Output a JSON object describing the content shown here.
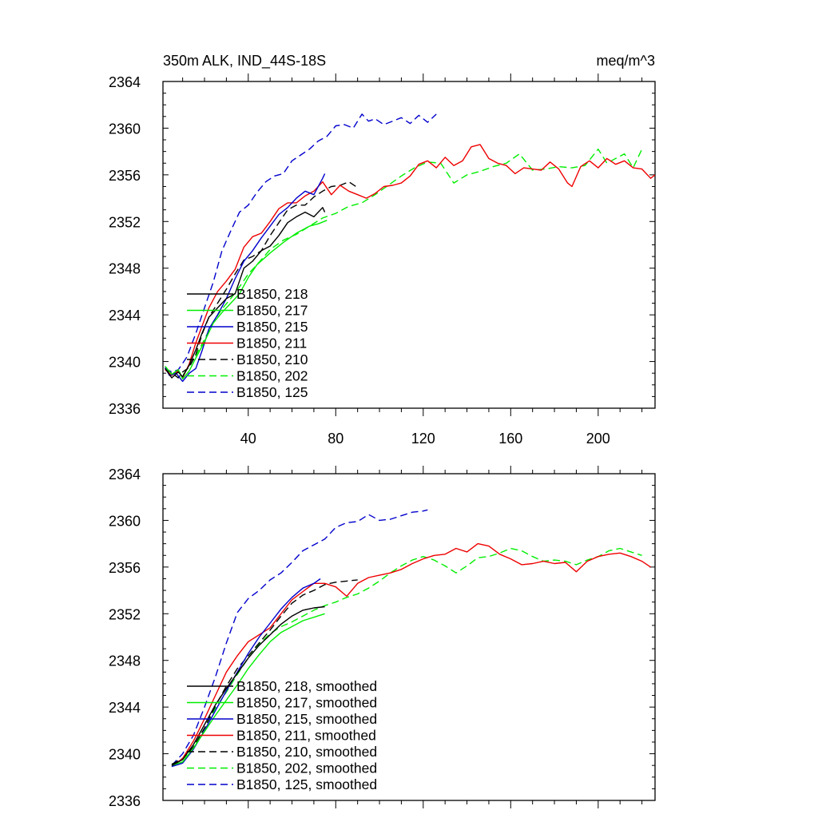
{
  "figure": {
    "title_left": "350m ALK, IND_44S-18S",
    "title_right": "meq/m^3"
  },
  "chart_data": [
    {
      "type": "line",
      "title": "350m ALK, IND_44S-18S",
      "units": "meq/m^3",
      "xlim": [
        1,
        226
      ],
      "ylim": [
        2336,
        2364
      ],
      "x_ticks": [
        40,
        80,
        120,
        160,
        200
      ],
      "x_tick_labels": [
        "40",
        "80",
        "120",
        "160",
        "200"
      ],
      "y_ticks": [
        2336,
        2340,
        2344,
        2348,
        2352,
        2356,
        2360,
        2364
      ],
      "y_tick_labels": [
        "2336",
        "2340",
        "2344",
        "2348",
        "2352",
        "2356",
        "2360",
        "2364"
      ],
      "legend_position": "lower-left",
      "series": [
        {
          "name": "B1850, 218",
          "color": "#000000",
          "dash": "solid",
          "x": [
            2,
            5,
            8,
            10,
            13,
            16,
            19,
            22,
            26,
            30,
            34,
            38,
            42,
            46,
            50,
            54,
            58,
            62,
            66,
            70,
            74,
            75
          ],
          "y": [
            2339.4,
            2338.6,
            2339.1,
            2338.7,
            2339.7,
            2341.0,
            2342.5,
            2343.8,
            2344.6,
            2345.4,
            2345.8,
            2348.0,
            2348.6,
            2349.5,
            2349.9,
            2350.8,
            2351.9,
            2352.4,
            2352.8,
            2352.4,
            2353.2,
            2352.8
          ]
        },
        {
          "name": "B1850, 217",
          "color": "#00ee00",
          "dash": "solid",
          "x": [
            2,
            5,
            8,
            10,
            13,
            16,
            20,
            24,
            28,
            32,
            36,
            40,
            44,
            50,
            56,
            62,
            68,
            72,
            76
          ],
          "y": [
            2339.6,
            2338.9,
            2339.3,
            2338.5,
            2339.2,
            2340.3,
            2341.7,
            2343.3,
            2344.2,
            2345.0,
            2345.8,
            2347.2,
            2348.3,
            2349.3,
            2350.2,
            2351.0,
            2351.6,
            2351.8,
            2352.1
          ]
        },
        {
          "name": "B1850, 215",
          "color": "#0000cc",
          "dash": "solid",
          "x": [
            2,
            4,
            7,
            10,
            13,
            16,
            19,
            22,
            26,
            30,
            34,
            38,
            42,
            46,
            50,
            54,
            58,
            62,
            66,
            70,
            74,
            75
          ],
          "y": [
            2339.5,
            2338.8,
            2339.0,
            2338.3,
            2339.0,
            2339.4,
            2341.0,
            2342.8,
            2344.0,
            2345.4,
            2347.1,
            2348.6,
            2349.5,
            2350.6,
            2351.6,
            2352.6,
            2353.2,
            2354.0,
            2354.6,
            2354.3,
            2355.7,
            2356.1
          ]
        },
        {
          "name": "B1850, 211",
          "color": "#ee0000",
          "dash": "solid",
          "x": [
            2,
            5,
            8,
            10,
            13,
            16,
            19,
            22,
            26,
            30,
            34,
            38,
            42,
            46,
            50,
            54,
            58,
            62,
            66,
            70,
            74,
            78,
            82,
            86,
            90,
            94,
            98,
            102,
            106,
            110,
            114,
            118,
            122,
            126,
            130,
            134,
            138,
            142,
            146,
            150,
            154,
            158,
            162,
            166,
            170,
            174,
            178,
            182,
            186,
            188,
            192,
            196,
            200,
            204,
            208,
            212,
            216,
            220,
            224,
            226
          ],
          "y": [
            2339.3,
            2338.8,
            2339.2,
            2338.6,
            2339.8,
            2341.6,
            2343.1,
            2344.6,
            2346.0,
            2346.9,
            2347.9,
            2349.8,
            2350.7,
            2351.0,
            2352.0,
            2353.1,
            2353.6,
            2353.6,
            2354.2,
            2354.6,
            2355.4,
            2354.3,
            2355.1,
            2354.6,
            2354.3,
            2354.0,
            2354.4,
            2355.0,
            2355.1,
            2355.3,
            2355.9,
            2356.9,
            2357.2,
            2356.6,
            2357.5,
            2356.8,
            2357.2,
            2358.4,
            2358.6,
            2357.4,
            2357.0,
            2356.8,
            2356.1,
            2356.6,
            2356.5,
            2356.4,
            2357.1,
            2356.5,
            2355.3,
            2355.0,
            2356.7,
            2357.2,
            2356.6,
            2357.4,
            2356.9,
            2357.2,
            2356.6,
            2356.5,
            2355.7,
            2356.0
          ]
        },
        {
          "name": "B1850, 210",
          "color": "#000000",
          "dash": "dashed",
          "x": [
            2,
            5,
            8,
            10,
            13,
            16,
            19,
            22,
            26,
            30,
            34,
            38,
            42,
            46,
            50,
            54,
            58,
            62,
            66,
            70,
            74,
            78,
            82,
            86,
            90
          ],
          "y": [
            2339.3,
            2339.0,
            2338.6,
            2339.1,
            2339.5,
            2340.6,
            2342.4,
            2343.8,
            2345.0,
            2346.2,
            2347.5,
            2348.7,
            2349.0,
            2349.5,
            2350.8,
            2351.9,
            2353.0,
            2353.4,
            2353.4,
            2354.1,
            2354.6,
            2355.0,
            2355.1,
            2355.4,
            2354.9
          ]
        },
        {
          "name": "B1850, 202",
          "color": "#00ee00",
          "dash": "dashed",
          "x": [
            2,
            5,
            8,
            10,
            13,
            16,
            20,
            24,
            28,
            32,
            36,
            40,
            44,
            50,
            56,
            62,
            68,
            74,
            80,
            86,
            92,
            98,
            104,
            110,
            116,
            122,
            128,
            134,
            140,
            146,
            152,
            158,
            164,
            170,
            176,
            182,
            188,
            194,
            200,
            204,
            208,
            212,
            216,
            220
          ],
          "y": [
            2339.4,
            2339.0,
            2339.2,
            2338.8,
            2339.6,
            2340.5,
            2341.9,
            2343.4,
            2344.5,
            2345.4,
            2346.4,
            2347.5,
            2348.3,
            2349.6,
            2350.4,
            2350.9,
            2351.6,
            2352.3,
            2352.7,
            2353.3,
            2353.6,
            2354.3,
            2355.1,
            2355.9,
            2356.6,
            2357.1,
            2357.0,
            2355.3,
            2356.0,
            2356.3,
            2356.7,
            2357.0,
            2357.8,
            2356.4,
            2356.5,
            2356.7,
            2356.6,
            2356.8,
            2358.2,
            2357.0,
            2357.4,
            2357.8,
            2356.6,
            2358.2
          ]
        },
        {
          "name": "B1850, 125",
          "color": "#0000cc",
          "dash": "dashed",
          "x": [
            2,
            5,
            8,
            12,
            16,
            20,
            24,
            28,
            32,
            36,
            40,
            44,
            48,
            52,
            56,
            60,
            64,
            68,
            72,
            76,
            80,
            84,
            88,
            92,
            95,
            98,
            102,
            106,
            110,
            114,
            118,
            122,
            126
          ],
          "y": [
            2339.4,
            2339.1,
            2339.3,
            2340.4,
            2342.4,
            2344.6,
            2346.8,
            2349.5,
            2351.2,
            2352.8,
            2353.4,
            2354.5,
            2355.4,
            2355.9,
            2356.1,
            2357.2,
            2357.7,
            2358.2,
            2358.9,
            2359.3,
            2360.2,
            2360.3,
            2360.0,
            2361.2,
            2360.6,
            2360.8,
            2360.3,
            2360.6,
            2360.9,
            2360.4,
            2361.1,
            2360.5,
            2361.2
          ]
        }
      ]
    },
    {
      "type": "line",
      "title": "",
      "units": "",
      "xlim": [
        1,
        226
      ],
      "ylim": [
        2336,
        2364
      ],
      "x_ticks": [
        40,
        80,
        120,
        160,
        200
      ],
      "x_tick_labels": [],
      "y_ticks": [
        2336,
        2340,
        2344,
        2348,
        2352,
        2356,
        2360,
        2364
      ],
      "y_tick_labels": [
        "2336",
        "2340",
        "2344",
        "2348",
        "2352",
        "2356",
        "2360",
        "2364"
      ],
      "legend_position": "lower-left",
      "series": [
        {
          "name": "B1850, 218, smoothed",
          "color": "#000000",
          "dash": "solid",
          "x": [
            5,
            10,
            15,
            20,
            25,
            30,
            35,
            40,
            45,
            50,
            55,
            60,
            65,
            70,
            75
          ],
          "y": [
            2339.0,
            2339.5,
            2340.8,
            2342.5,
            2344.2,
            2345.6,
            2346.9,
            2348.2,
            2349.3,
            2350.2,
            2351.1,
            2351.8,
            2352.3,
            2352.5,
            2352.6
          ]
        },
        {
          "name": "B1850, 217, smoothed",
          "color": "#00ee00",
          "dash": "solid",
          "x": [
            5,
            10,
            15,
            20,
            25,
            30,
            35,
            40,
            45,
            50,
            55,
            60,
            65,
            70,
            75
          ],
          "y": [
            2339.0,
            2339.3,
            2340.5,
            2341.9,
            2343.3,
            2344.6,
            2345.9,
            2347.3,
            2348.5,
            2349.6,
            2350.4,
            2350.9,
            2351.4,
            2351.7,
            2352.0
          ]
        },
        {
          "name": "B1850, 215, smoothed",
          "color": "#0000cc",
          "dash": "solid",
          "x": [
            5,
            10,
            15,
            20,
            25,
            30,
            35,
            40,
            45,
            50,
            55,
            60,
            65,
            70,
            73
          ],
          "y": [
            2338.9,
            2339.2,
            2340.4,
            2342.0,
            2343.7,
            2345.4,
            2347.0,
            2348.6,
            2350.0,
            2351.2,
            2352.4,
            2353.4,
            2354.2,
            2354.6,
            2355.0
          ]
        },
        {
          "name": "B1850, 211, smoothed",
          "color": "#ee0000",
          "dash": "solid",
          "x": [
            5,
            10,
            15,
            20,
            25,
            30,
            35,
            40,
            45,
            50,
            55,
            60,
            65,
            70,
            75,
            80,
            85,
            90,
            95,
            100,
            105,
            110,
            115,
            120,
            125,
            130,
            135,
            140,
            145,
            150,
            155,
            160,
            165,
            170,
            175,
            180,
            185,
            190,
            195,
            200,
            205,
            210,
            215,
            220,
            224
          ],
          "y": [
            2338.9,
            2339.6,
            2341.1,
            2343.0,
            2345.0,
            2347.0,
            2348.4,
            2349.6,
            2350.2,
            2350.8,
            2352.0,
            2353.2,
            2353.9,
            2354.6,
            2354.6,
            2354.3,
            2353.5,
            2354.6,
            2355.1,
            2355.3,
            2355.5,
            2355.8,
            2356.3,
            2356.7,
            2357.0,
            2357.1,
            2357.6,
            2357.3,
            2358.0,
            2357.8,
            2357.1,
            2356.7,
            2356.2,
            2356.3,
            2356.5,
            2356.3,
            2356.4,
            2355.6,
            2356.5,
            2356.9,
            2357.1,
            2357.2,
            2356.9,
            2356.5,
            2356.0
          ]
        },
        {
          "name": "B1850, 210, smoothed",
          "color": "#000000",
          "dash": "dashed",
          "x": [
            5,
            10,
            15,
            20,
            25,
            30,
            35,
            40,
            45,
            50,
            55,
            60,
            65,
            70,
            75,
            80,
            85,
            90
          ],
          "y": [
            2339.1,
            2339.6,
            2340.6,
            2342.2,
            2344.1,
            2345.8,
            2347.3,
            2348.4,
            2349.5,
            2350.6,
            2351.8,
            2352.9,
            2353.6,
            2354.0,
            2354.5,
            2354.7,
            2354.8,
            2354.9
          ]
        },
        {
          "name": "B1850, 202, smoothed",
          "color": "#00ee00",
          "dash": "dashed",
          "x": [
            5,
            10,
            15,
            20,
            25,
            30,
            35,
            40,
            45,
            50,
            55,
            60,
            65,
            70,
            75,
            80,
            85,
            90,
            95,
            100,
            105,
            110,
            115,
            120,
            125,
            130,
            135,
            140,
            145,
            150,
            155,
            160,
            165,
            170,
            175,
            180,
            185,
            190,
            195,
            200,
            205,
            210,
            215,
            220
          ],
          "y": [
            2339.1,
            2339.5,
            2340.6,
            2342.2,
            2343.9,
            2345.3,
            2346.8,
            2348.2,
            2349.4,
            2350.3,
            2350.9,
            2351.3,
            2351.8,
            2352.3,
            2352.7,
            2353.0,
            2353.4,
            2353.7,
            2354.2,
            2354.8,
            2355.5,
            2356.1,
            2356.6,
            2356.9,
            2356.6,
            2356.1,
            2355.5,
            2356.1,
            2356.8,
            2356.9,
            2357.2,
            2357.6,
            2357.4,
            2356.9,
            2356.5,
            2356.6,
            2356.5,
            2356.2,
            2356.6,
            2356.9,
            2357.4,
            2357.6,
            2357.3,
            2357.0
          ]
        },
        {
          "name": "B1850, 125, smoothed",
          "color": "#0000cc",
          "dash": "dashed",
          "x": [
            5,
            10,
            15,
            20,
            25,
            30,
            35,
            40,
            45,
            50,
            55,
            60,
            65,
            70,
            75,
            80,
            85,
            90,
            95,
            100,
            105,
            110,
            115,
            120,
            122
          ],
          "y": [
            2339.0,
            2340.0,
            2341.6,
            2344.0,
            2346.6,
            2349.5,
            2352.1,
            2353.3,
            2354.0,
            2354.9,
            2355.5,
            2356.4,
            2357.4,
            2357.9,
            2358.4,
            2359.4,
            2359.8,
            2359.9,
            2360.5,
            2360.0,
            2360.1,
            2360.4,
            2360.7,
            2360.8,
            2360.9
          ]
        }
      ]
    }
  ]
}
